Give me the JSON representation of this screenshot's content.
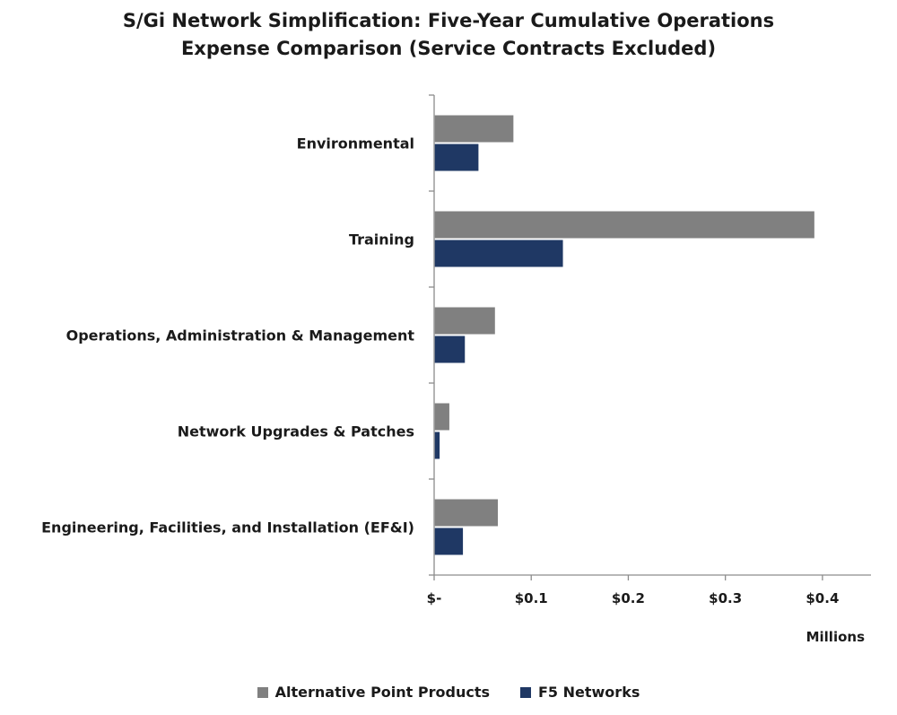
{
  "chart_data": {
    "type": "bar",
    "orientation": "horizontal",
    "title_lines": [
      "S/Gi Network Simplification: Five-Year Cumulative Operations",
      "Expense Comparison (Service Contracts Excluded)"
    ],
    "categories": [
      "Environmental",
      "Training",
      "Operations, Administration & Management",
      "Network Upgrades & Patches",
      "Engineering, Facilities, and Installation (EF&I)"
    ],
    "series": [
      {
        "name": "Alternative Point Products",
        "color": "#808080",
        "values": [
          0.081,
          0.391,
          0.062,
          0.015,
          0.065
        ]
      },
      {
        "name": "F5 Networks",
        "color": "#1f3864",
        "values": [
          0.045,
          0.132,
          0.031,
          0.005,
          0.029
        ]
      }
    ],
    "xlim": [
      0,
      0.45
    ],
    "xticks": [
      0,
      0.1,
      0.2,
      0.3,
      0.4
    ],
    "xtick_labels": [
      "$-",
      "$0.1",
      "$0.2",
      "$0.3",
      "$0.4"
    ],
    "xlabel": "Millions",
    "legend_position": "bottom",
    "grid": false
  }
}
